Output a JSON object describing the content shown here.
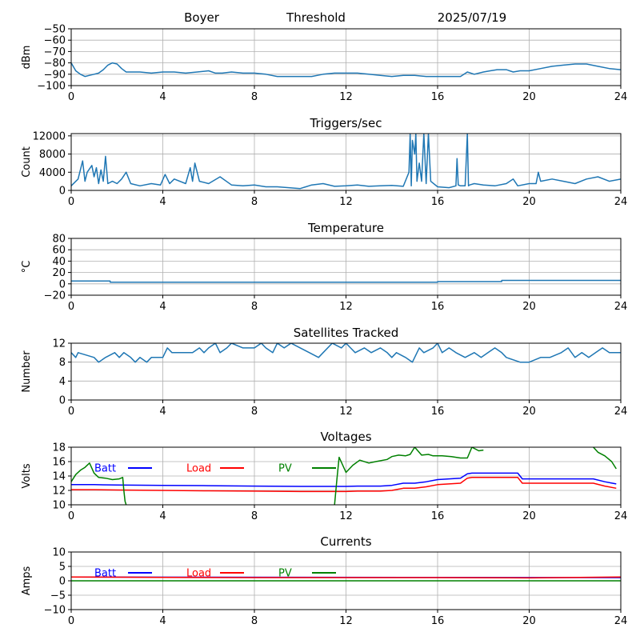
{
  "header": {
    "station": "Boyer",
    "mode": "Threshold",
    "date": "2025/07/19"
  },
  "colors": {
    "series": "#1f77b4",
    "batt": "#0000ff",
    "load": "#ff0000",
    "pv": "#008000",
    "grid": "#b0b0b0"
  },
  "chart_data": [
    {
      "type": "line",
      "title": "",
      "xlabel": "",
      "ylabel": "dBm",
      "xlim": [
        0,
        24
      ],
      "ylim": [
        -100,
        -50
      ],
      "xticks": [
        0,
        4,
        8,
        12,
        16,
        20,
        24
      ],
      "yticks": [
        -100,
        -90,
        -80,
        -70,
        -60,
        -50
      ],
      "grid": true,
      "series": [
        {
          "x": [
            0,
            0.2,
            0.4,
            0.6,
            0.8,
            1.0,
            1.2,
            1.4,
            1.6,
            1.8,
            2.0,
            2.2,
            2.4,
            2.6,
            3.0,
            3.5,
            4.0,
            4.5,
            5.0,
            5.5,
            6.0,
            6.3,
            6.6,
            7.0,
            7.5,
            8.0,
            8.5,
            9.0,
            9.5,
            10.0,
            10.5,
            11.0,
            11.5,
            12.0,
            12.5,
            13.0,
            13.5,
            14.0,
            14.5,
            15.0,
            15.5,
            16.0,
            16.5,
            17.0,
            17.3,
            17.6,
            18.0,
            18.3,
            18.6,
            19.0,
            19.3,
            19.6,
            20.0,
            20.5,
            21.0,
            21.5,
            22.0,
            22.5,
            23.0,
            23.5,
            24.0
          ],
          "values": [
            -80,
            -87,
            -90,
            -92,
            -91,
            -90,
            -89,
            -86,
            -82,
            -80,
            -81,
            -85,
            -88,
            -88,
            -88,
            -89,
            -88,
            -88,
            -89,
            -88,
            -87,
            -89,
            -89,
            -88,
            -89,
            -89,
            -90,
            -92,
            -92,
            -92,
            -92,
            -90,
            -89,
            -89,
            -89,
            -90,
            -91,
            -92,
            -91,
            -91,
            -92,
            -92,
            -92,
            -92,
            -88,
            -90,
            -88,
            -87,
            -86,
            -86,
            -88,
            -87,
            -87,
            -85,
            -83,
            -82,
            -81,
            -81,
            -83,
            -85,
            -86
          ]
        }
      ]
    },
    {
      "type": "line",
      "title": "Triggers/sec",
      "xlabel": "",
      "ylabel": "Count",
      "xlim": [
        0,
        24
      ],
      "ylim": [
        0,
        12500
      ],
      "xticks": [
        0,
        4,
        8,
        12,
        16,
        20,
        24
      ],
      "yticks": [
        0,
        4000,
        8000,
        12000
      ],
      "grid": true,
      "series": [
        {
          "x": [
            0,
            0.3,
            0.5,
            0.6,
            0.7,
            0.9,
            1.0,
            1.1,
            1.2,
            1.3,
            1.4,
            1.5,
            1.6,
            1.8,
            2.0,
            2.2,
            2.4,
            2.6,
            3.0,
            3.5,
            3.9,
            4.1,
            4.3,
            4.5,
            5.0,
            5.2,
            5.3,
            5.4,
            5.6,
            6.0,
            6.5,
            7.0,
            7.5,
            8.0,
            8.5,
            9.0,
            9.5,
            10.0,
            10.5,
            11.0,
            11.5,
            12.0,
            12.5,
            13.0,
            13.5,
            14.0,
            14.5,
            14.75,
            14.8,
            14.85,
            14.9,
            15.0,
            15.05,
            15.1,
            15.2,
            15.3,
            15.4,
            15.5,
            15.6,
            15.7,
            16.0,
            16.5,
            16.8,
            16.85,
            16.9,
            17.0,
            17.2,
            17.3,
            17.35,
            17.4,
            17.6,
            18.0,
            18.5,
            19.0,
            19.3,
            19.5,
            20.0,
            20.3,
            20.4,
            20.5,
            21.0,
            21.5,
            22.0,
            22.5,
            23.0,
            23.5,
            24.0
          ],
          "values": [
            1000,
            2500,
            6500,
            2000,
            4000,
            5500,
            3000,
            5000,
            1500,
            4500,
            2000,
            7500,
            1500,
            2000,
            1500,
            2500,
            4000,
            1500,
            1000,
            1500,
            1200,
            3500,
            1500,
            2500,
            1500,
            5000,
            2000,
            6000,
            2000,
            1500,
            3000,
            1200,
            1000,
            1200,
            800,
            800,
            600,
            400,
            1200,
            1500,
            900,
            1000,
            1200,
            900,
            1000,
            1100,
            900,
            4000,
            12500,
            1000,
            11000,
            8000,
            12500,
            2000,
            6000,
            2000,
            12500,
            1500,
            12500,
            2000,
            800,
            600,
            1000,
            7000,
            1200,
            1000,
            1000,
            12500,
            1000,
            1200,
            1500,
            1200,
            1000,
            1500,
            2500,
            1000,
            1500,
            1500,
            4000,
            2000,
            2500,
            2000,
            1500,
            2500,
            3000,
            2000,
            2500
          ]
        }
      ]
    },
    {
      "type": "line",
      "title": "Temperature",
      "xlabel": "",
      "ylabel": "°C",
      "xlim": [
        0,
        24
      ],
      "ylim": [
        -20,
        80
      ],
      "xticks": [
        0,
        4,
        8,
        12,
        16,
        20,
        24
      ],
      "yticks": [
        -20,
        0,
        20,
        40,
        60,
        80
      ],
      "grid": true,
      "series": [
        {
          "x": [
            0,
            1.7,
            1.7,
            16,
            16,
            18.8,
            18.8,
            24
          ],
          "values": [
            5,
            5,
            3,
            3,
            4,
            4,
            6,
            6
          ]
        }
      ]
    },
    {
      "type": "line",
      "title": "Satellites Tracked",
      "xlabel": "",
      "ylabel": "Number",
      "xlim": [
        0,
        24
      ],
      "ylim": [
        0,
        12
      ],
      "xticks": [
        0,
        4,
        8,
        12,
        16,
        20,
        24
      ],
      "yticks": [
        0,
        4,
        8,
        12
      ],
      "grid": true,
      "series": [
        {
          "x": [
            0,
            0.2,
            0.3,
            1.0,
            1.2,
            1.5,
            1.9,
            2.1,
            2.3,
            2.6,
            2.8,
            3.0,
            3.3,
            3.5,
            4.0,
            4.2,
            4.4,
            5.0,
            5.3,
            5.6,
            5.8,
            6.0,
            6.3,
            6.5,
            6.8,
            7.0,
            7.5,
            8.0,
            8.3,
            8.5,
            8.8,
            9.0,
            9.3,
            9.6,
            10.0,
            10.4,
            10.8,
            11.0,
            11.4,
            11.8,
            12.0,
            12.2,
            12.4,
            12.8,
            13.1,
            13.5,
            13.8,
            14.0,
            14.2,
            14.6,
            14.9,
            15.2,
            15.4,
            15.8,
            16.0,
            16.2,
            16.5,
            16.8,
            17.2,
            17.6,
            17.9,
            18.2,
            18.5,
            18.8,
            19.0,
            19.6,
            20.0,
            20.5,
            20.9,
            21.4,
            21.7,
            22.0,
            22.3,
            22.6,
            22.9,
            23.2,
            23.5,
            24.0
          ],
          "values": [
            10,
            9,
            10,
            9,
            8,
            9,
            10,
            9,
            10,
            9,
            8,
            9,
            8,
            9,
            9,
            11,
            10,
            10,
            10,
            11,
            10,
            11,
            12,
            10,
            11,
            12,
            11,
            11,
            12,
            11,
            10,
            12,
            11,
            12,
            11,
            10,
            9,
            10,
            12,
            11,
            12,
            11,
            10,
            11,
            10,
            11,
            10,
            9,
            10,
            9,
            8,
            11,
            10,
            11,
            12,
            10,
            11,
            10,
            9,
            10,
            9,
            10,
            11,
            10,
            9,
            8,
            8,
            9,
            9,
            10,
            11,
            9,
            10,
            9,
            10,
            11,
            10,
            10
          ]
        }
      ]
    },
    {
      "type": "line",
      "title": "Voltages",
      "xlabel": "",
      "ylabel": "Volts",
      "xlim": [
        0,
        24
      ],
      "ylim": [
        10,
        18
      ],
      "xticks": [
        0,
        4,
        8,
        12,
        16,
        20,
        24
      ],
      "yticks": [
        10,
        12,
        14,
        16,
        18
      ],
      "grid": true,
      "legend": "top-left",
      "series": [
        {
          "name": "Batt",
          "x": [
            0,
            0.5,
            1,
            2,
            4,
            6,
            8,
            10,
            11.5,
            12,
            12.5,
            13.5,
            14,
            14.5,
            15,
            15.5,
            16,
            16.5,
            17,
            17.3,
            17.5,
            18,
            19,
            19.5,
            19.7,
            20,
            21,
            22,
            22.8,
            23.3,
            23.8
          ],
          "values": [
            12.8,
            12.8,
            12.8,
            12.75,
            12.7,
            12.65,
            12.6,
            12.55,
            12.55,
            12.55,
            12.6,
            12.6,
            12.7,
            13.0,
            13.0,
            13.2,
            13.5,
            13.6,
            13.7,
            14.3,
            14.4,
            14.4,
            14.4,
            14.4,
            13.6,
            13.6,
            13.6,
            13.6,
            13.6,
            13.2,
            12.9
          ]
        },
        {
          "name": "Load",
          "x": [
            0,
            0.5,
            1,
            2,
            4,
            6,
            8,
            10,
            11.5,
            12,
            12.5,
            13.5,
            14,
            14.5,
            15,
            15.5,
            16,
            16.5,
            17,
            17.3,
            17.5,
            18,
            19,
            19.5,
            19.7,
            20,
            21,
            22,
            22.8,
            23.3,
            23.8
          ],
          "values": [
            12.1,
            12.1,
            12.1,
            12.05,
            12.0,
            11.95,
            11.9,
            11.85,
            11.85,
            11.85,
            11.9,
            11.9,
            12.0,
            12.3,
            12.3,
            12.5,
            12.8,
            12.9,
            13.0,
            13.7,
            13.8,
            13.8,
            13.8,
            13.8,
            13.0,
            13.0,
            13.0,
            13.0,
            13.0,
            12.6,
            12.3
          ]
        },
        {
          "name": "PV",
          "x": [
            0,
            0.2,
            0.4,
            0.6,
            0.8,
            1.0,
            1.2,
            1.5,
            1.8,
            2.1,
            2.25,
            2.3,
            2.35,
            2.4
          ],
          "values": [
            13.2,
            14.2,
            14.8,
            15.2,
            15.8,
            14.4,
            13.8,
            13.7,
            13.5,
            13.6,
            13.8,
            12.0,
            10.5,
            10.0
          ]
        },
        {
          "name": "",
          "x": [
            11.5,
            11.6,
            11.7,
            12.0,
            12.3,
            12.6,
            13.0,
            13.3,
            13.8,
            14.0,
            14.3,
            14.6,
            14.8,
            15.0,
            15.3,
            15.6,
            15.8,
            16.2,
            16.6,
            17.0,
            17.3,
            17.5,
            17.8,
            18.0
          ],
          "values": [
            10.0,
            13.5,
            16.6,
            14.5,
            15.5,
            16.2,
            15.8,
            16.0,
            16.3,
            16.7,
            16.9,
            16.8,
            17.0,
            18.0,
            16.9,
            17.0,
            16.8,
            16.8,
            16.7,
            16.5,
            16.5,
            18.0,
            17.5,
            17.6
          ]
        },
        {
          "name": "",
          "x": [
            22.8,
            23.0,
            23.3,
            23.6,
            23.8
          ],
          "values": [
            18.0,
            17.3,
            16.8,
            16.0,
            15.0
          ]
        }
      ]
    },
    {
      "type": "line",
      "title": "Currents",
      "xlabel": "",
      "ylabel": "Amps",
      "xlim": [
        0,
        24
      ],
      "ylim": [
        -10,
        10
      ],
      "xticks": [
        0,
        4,
        8,
        12,
        16,
        20,
        24
      ],
      "yticks": [
        -10,
        -5,
        0,
        5,
        10
      ],
      "grid": true,
      "legend": "top-left",
      "series": [
        {
          "name": "Batt",
          "x": [
            0,
            24
          ],
          "values": [
            1.3,
            1.1
          ]
        },
        {
          "name": "Load",
          "x": [
            0,
            4,
            8,
            12,
            16,
            20,
            24
          ],
          "values": [
            1.3,
            1.2,
            1.1,
            1.1,
            1.1,
            1.0,
            1.3
          ]
        },
        {
          "name": "PV",
          "x": [
            0,
            24
          ],
          "values": [
            0,
            0
          ]
        }
      ]
    }
  ]
}
